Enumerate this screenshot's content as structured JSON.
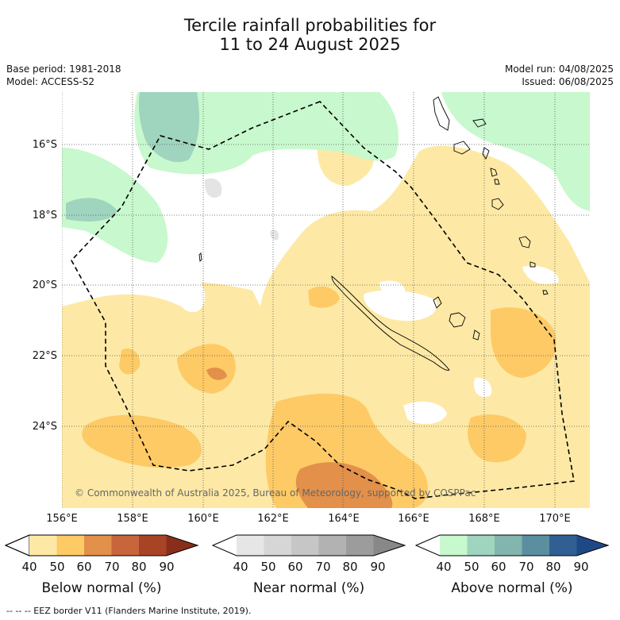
{
  "title": {
    "line1": "Tercile rainfall probabilities for",
    "line2": "11 to 24 August 2025"
  },
  "meta": {
    "base_period": "Base period: 1981-2018",
    "model": "Model: ACCESS-S2",
    "model_run": "Model run: 04/08/2025",
    "issued": "Issued: 06/08/2025"
  },
  "map": {
    "lat_labels": [
      "16°S",
      "18°S",
      "20°S",
      "22°S",
      "24°S"
    ],
    "lon_labels": [
      "156°E",
      "158°E",
      "160°E",
      "162°E",
      "164°E",
      "166°E",
      "168°E",
      "170°E"
    ],
    "copyright": "© Commonwealth of Australia 2025, Bureau of Meteorology, supported by COSPPac",
    "colors": {
      "below_40_50": "#fde9a5",
      "below_50_60": "#fdca66",
      "below_60_70": "#e2904a",
      "near_40_50": "#e4e4e4",
      "above_40_50": "#c8f8cd",
      "above_50_60": "#9fd4bf",
      "land_outline": "#000000",
      "eez_border": "#000000"
    }
  },
  "colorbars": {
    "below": {
      "title": "Below normal (%)",
      "ticks": [
        "40",
        "50",
        "60",
        "70",
        "80",
        "90"
      ],
      "colors": [
        "#ffffff",
        "#fde9a5",
        "#fdca66",
        "#e2904a",
        "#c8653b",
        "#a84426",
        "#8a2e1c"
      ]
    },
    "near": {
      "title": "Near normal (%)",
      "ticks": [
        "40",
        "50",
        "60",
        "70",
        "80",
        "90"
      ],
      "colors": [
        "#ffffff",
        "#e6e6e6",
        "#d6d6d6",
        "#c6c6c6",
        "#b2b2b2",
        "#9c9c9c",
        "#888888"
      ]
    },
    "above": {
      "title": "Above normal (%)",
      "ticks": [
        "40",
        "50",
        "60",
        "70",
        "80",
        "90"
      ],
      "colors": [
        "#ffffff",
        "#c8f8cd",
        "#9fd4bf",
        "#82b5ae",
        "#5b8fa0",
        "#325f93",
        "#1f4986"
      ]
    }
  },
  "footnote": "-- -- -- EEZ border V11 (Flanders Marine Institute, 2019)."
}
